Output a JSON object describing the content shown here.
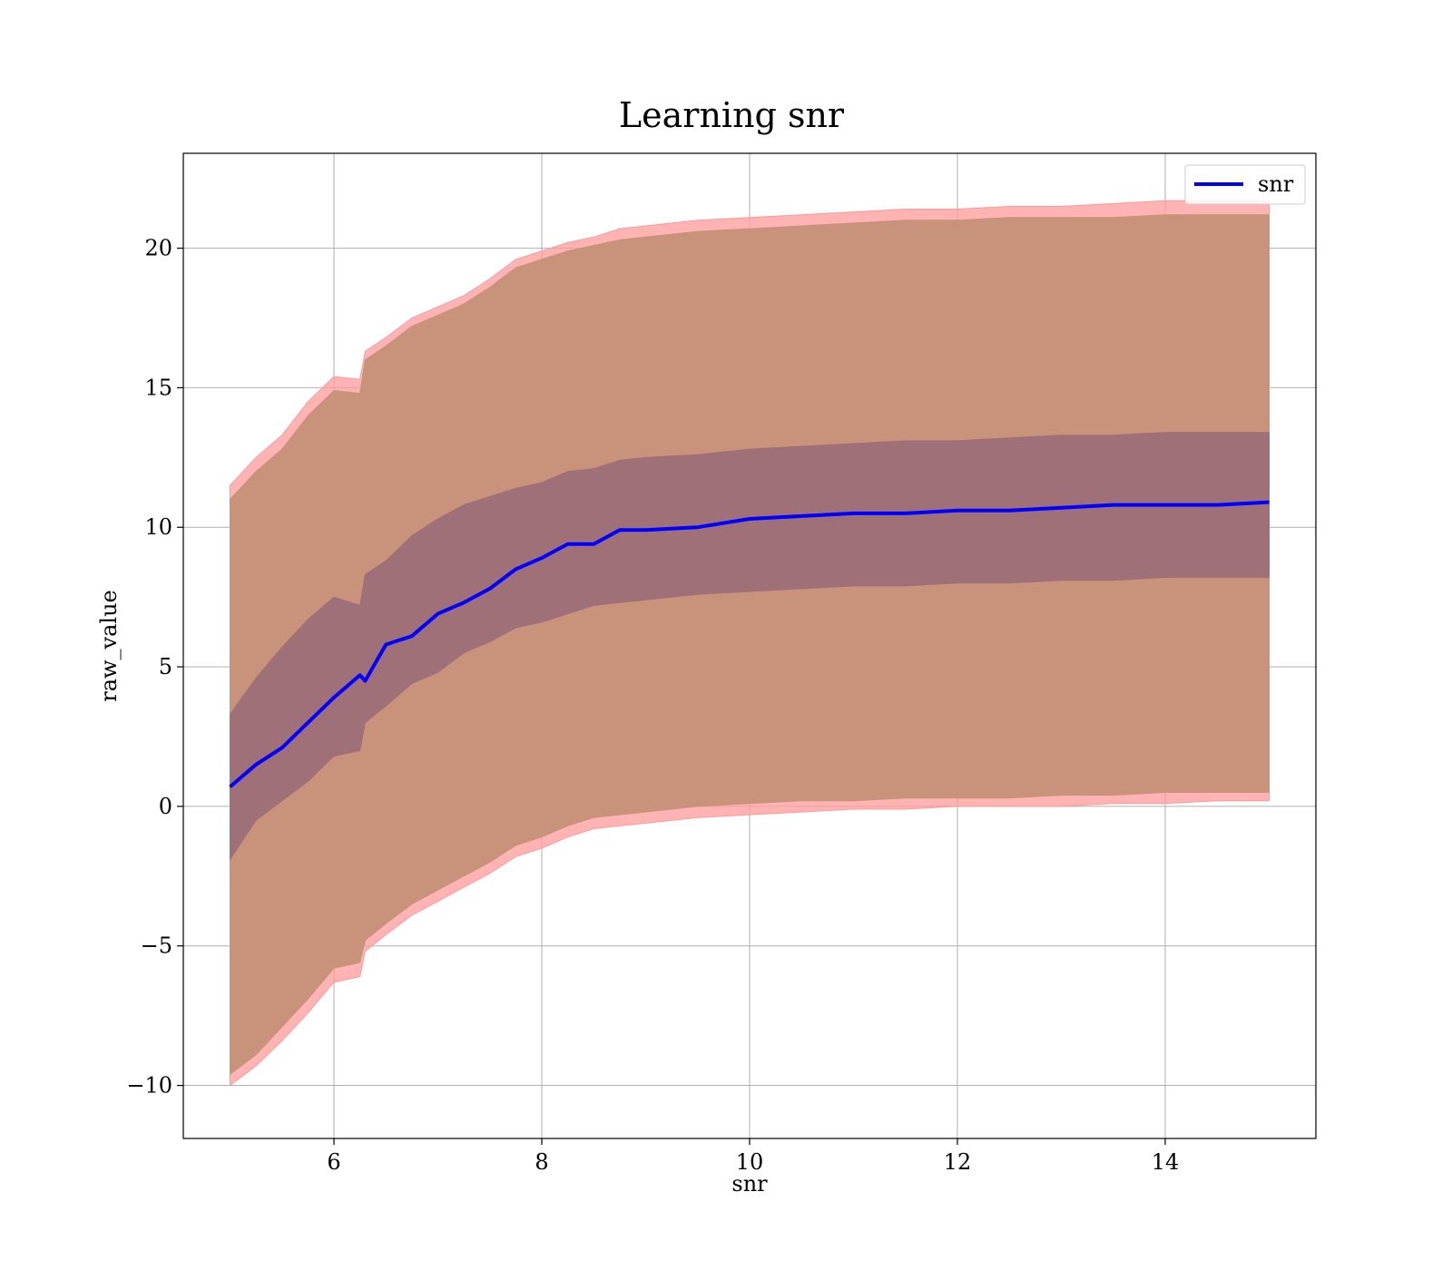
{
  "chart_data": {
    "type": "area",
    "title": "Learning snr",
    "xlabel": "snr",
    "ylabel": "raw_value",
    "xlim": [
      4.55,
      15.45
    ],
    "ylim": [
      -11.9,
      23.4
    ],
    "xticks": [
      6,
      8,
      10,
      12,
      14
    ],
    "yticks": [
      -10,
      -5,
      0,
      5,
      10,
      15,
      20
    ],
    "xtick_labels": [
      "6",
      "8",
      "10",
      "12",
      "14"
    ],
    "ytick_labels": [
      "−10",
      "−5",
      "0",
      "5",
      "10",
      "15",
      "20"
    ],
    "grid": true,
    "legend": {
      "placement": "top-right",
      "entries": [
        "snr"
      ]
    },
    "colors": {
      "line": "#0000ff",
      "outer_band": "#ff9999",
      "mid_band": "#c8937a",
      "inner_band": "#a07078",
      "grid": "#b0b0b0"
    },
    "x": [
      5.0,
      5.25,
      5.5,
      5.75,
      6.0,
      6.25,
      6.3,
      6.5,
      6.75,
      7.0,
      7.25,
      7.5,
      7.75,
      8.0,
      8.25,
      8.5,
      8.75,
      9.0,
      9.5,
      10.0,
      10.5,
      11.0,
      11.5,
      12.0,
      12.5,
      13.0,
      13.5,
      14.0,
      14.5,
      15.0
    ],
    "series": [
      {
        "name": "snr",
        "values": [
          0.7,
          1.5,
          2.1,
          3.0,
          3.9,
          4.7,
          4.5,
          5.8,
          6.1,
          6.9,
          7.3,
          7.8,
          8.5,
          8.9,
          9.4,
          9.4,
          9.9,
          9.9,
          10.0,
          10.3,
          10.4,
          10.5,
          10.5,
          10.6,
          10.6,
          10.7,
          10.8,
          10.8,
          10.8,
          10.9
        ]
      }
    ],
    "bands": [
      {
        "role": "outer",
        "upper": [
          11.5,
          12.5,
          13.3,
          14.5,
          15.4,
          15.3,
          16.3,
          16.8,
          17.5,
          17.9,
          18.3,
          18.9,
          19.6,
          19.9,
          20.2,
          20.4,
          20.7,
          20.8,
          21.0,
          21.1,
          21.2,
          21.3,
          21.4,
          21.4,
          21.5,
          21.5,
          21.6,
          21.7,
          21.7,
          21.7
        ],
        "lower": [
          -10.0,
          -9.3,
          -8.4,
          -7.4,
          -6.3,
          -6.1,
          -5.2,
          -4.6,
          -3.9,
          -3.4,
          -2.9,
          -2.4,
          -1.8,
          -1.5,
          -1.1,
          -0.8,
          -0.7,
          -0.6,
          -0.4,
          -0.3,
          -0.2,
          -0.1,
          -0.1,
          0.0,
          0.0,
          0.0,
          0.1,
          0.1,
          0.2,
          0.2
        ]
      },
      {
        "role": "middle",
        "upper": [
          11.0,
          12.0,
          12.8,
          14.0,
          14.9,
          14.8,
          16.0,
          16.5,
          17.2,
          17.6,
          18.0,
          18.6,
          19.3,
          19.6,
          19.9,
          20.1,
          20.3,
          20.4,
          20.6,
          20.7,
          20.8,
          20.9,
          21.0,
          21.0,
          21.1,
          21.1,
          21.1,
          21.2,
          21.2,
          21.2
        ],
        "lower": [
          -9.6,
          -8.9,
          -7.9,
          -6.9,
          -5.8,
          -5.6,
          -4.8,
          -4.2,
          -3.5,
          -3.0,
          -2.5,
          -2.0,
          -1.4,
          -1.1,
          -0.7,
          -0.4,
          -0.3,
          -0.2,
          0.0,
          0.1,
          0.2,
          0.2,
          0.3,
          0.3,
          0.3,
          0.4,
          0.4,
          0.5,
          0.5,
          0.5
        ]
      },
      {
        "role": "inner",
        "upper": [
          3.3,
          4.6,
          5.7,
          6.7,
          7.5,
          7.2,
          8.3,
          8.8,
          9.7,
          10.3,
          10.8,
          11.1,
          11.4,
          11.6,
          12.0,
          12.1,
          12.4,
          12.5,
          12.6,
          12.8,
          12.9,
          13.0,
          13.1,
          13.1,
          13.2,
          13.3,
          13.3,
          13.4,
          13.4,
          13.4
        ],
        "lower": [
          -1.9,
          -0.5,
          0.2,
          0.9,
          1.8,
          2.0,
          3.0,
          3.6,
          4.4,
          4.8,
          5.5,
          5.9,
          6.4,
          6.6,
          6.9,
          7.2,
          7.3,
          7.4,
          7.6,
          7.7,
          7.8,
          7.9,
          7.9,
          8.0,
          8.0,
          8.1,
          8.1,
          8.2,
          8.2,
          8.2
        ]
      }
    ]
  }
}
